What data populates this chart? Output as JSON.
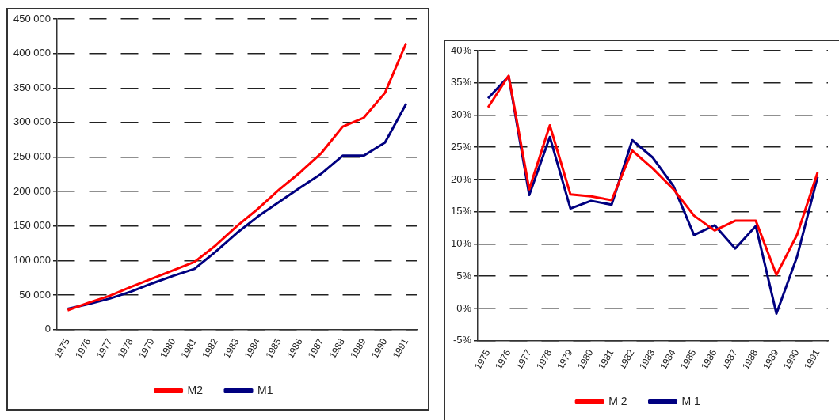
{
  "chart_data": [
    {
      "type": "line",
      "categories": [
        "1975",
        "1976",
        "1977",
        "1978",
        "1979",
        "1980",
        "1981",
        "1982",
        "1983",
        "1984",
        "1985",
        "1986",
        "1987",
        "1988",
        "1989",
        "1990",
        "1991"
      ],
      "series": [
        {
          "name": "M2",
          "color": "#ff0000",
          "values": [
            28000,
            39000,
            49000,
            62000,
            74000,
            86000,
            98000,
            122000,
            150000,
            175000,
            203000,
            228000,
            256000,
            294000,
            307000,
            343000,
            415000
          ]
        },
        {
          "name": "M1",
          "color": "#000080",
          "values": [
            30000,
            37000,
            45000,
            55000,
            67000,
            78000,
            88000,
            113000,
            140000,
            164000,
            185000,
            206000,
            226000,
            252000,
            252000,
            271000,
            327000
          ]
        }
      ],
      "ylim": [
        0,
        450000
      ],
      "yticks": [
        {
          "value": 0,
          "label": "0"
        },
        {
          "value": 50000,
          "label": "50 000"
        },
        {
          "value": 100000,
          "label": "100 000"
        },
        {
          "value": 150000,
          "label": "150 000"
        },
        {
          "value": 200000,
          "label": "200 000"
        },
        {
          "value": 250000,
          "label": "250 000"
        },
        {
          "value": 300000,
          "label": "300 000"
        },
        {
          "value": 350000,
          "label": "350 000"
        },
        {
          "value": 400000,
          "label": "400 000"
        },
        {
          "value": 450000,
          "label": "450 000"
        }
      ],
      "grid": "y",
      "legend": "bottom",
      "marker": "none",
      "line_style": "solid"
    },
    {
      "type": "line",
      "categories": [
        "1975",
        "1976",
        "1977",
        "1978",
        "1979",
        "1980",
        "1981",
        "1982",
        "1983",
        "1984",
        "1985",
        "1986",
        "1987",
        "1988",
        "1989",
        "1990",
        "1991"
      ],
      "series": [
        {
          "name": "M 2",
          "color": "#ff0000",
          "values": [
            31.2,
            36.1,
            18.5,
            28.4,
            17.7,
            17.4,
            16.8,
            24.5,
            21.7,
            18.5,
            14.4,
            12.1,
            13.6,
            13.6,
            5.2,
            11.4,
            21.1
          ]
        },
        {
          "name": "M 1",
          "color": "#000080",
          "values": [
            32.6,
            36.0,
            17.6,
            26.6,
            15.5,
            16.7,
            16.1,
            26.1,
            23.4,
            19.0,
            11.4,
            12.9,
            9.3,
            12.8,
            -0.8,
            8.0,
            20.4
          ]
        }
      ],
      "ylim": [
        -5,
        40
      ],
      "yticks": [
        {
          "value": -5,
          "label": "-5%"
        },
        {
          "value": 0,
          "label": "0%"
        },
        {
          "value": 5,
          "label": "5%"
        },
        {
          "value": 10,
          "label": "10%"
        },
        {
          "value": 15,
          "label": "15%"
        },
        {
          "value": 20,
          "label": "20%"
        },
        {
          "value": 25,
          "label": "25%"
        },
        {
          "value": 30,
          "label": "30%"
        },
        {
          "value": 35,
          "label": "35%"
        },
        {
          "value": 40,
          "label": "40%"
        }
      ],
      "grid": "y",
      "legend": "bottom",
      "marker": "none",
      "line_style": "solid"
    }
  ]
}
